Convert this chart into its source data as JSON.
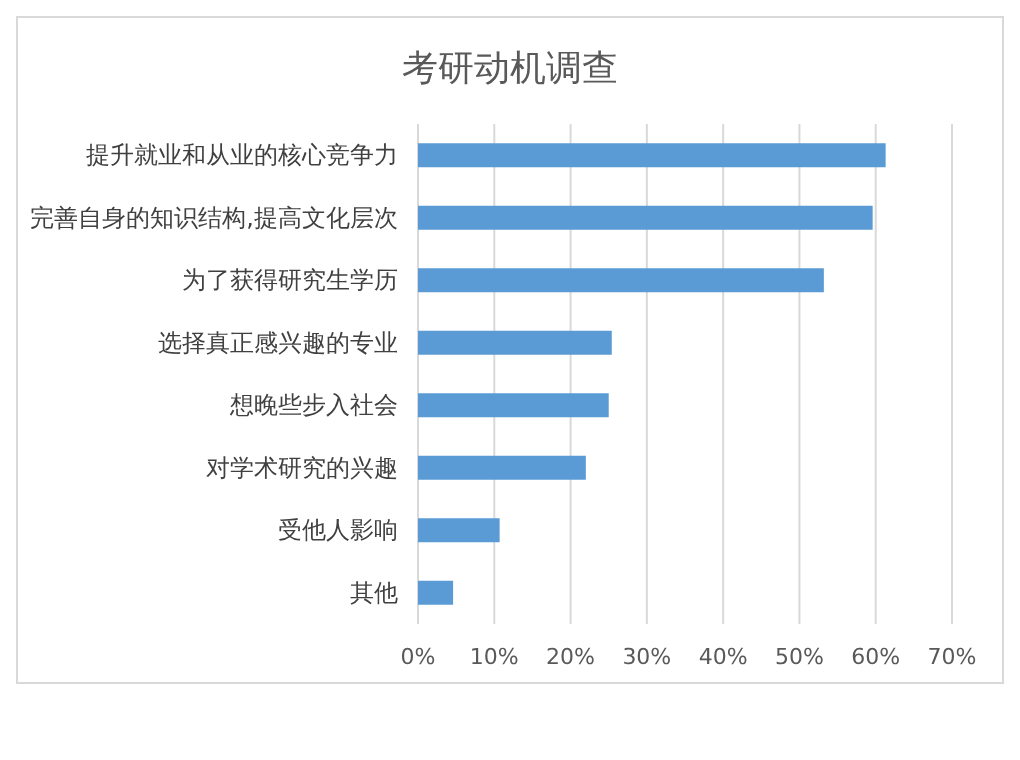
{
  "chart_data": {
    "type": "bar",
    "orientation": "horizontal",
    "title": "考研动机调查",
    "categories": [
      "提升就业和从业的核心竞争力",
      "完善自身的知识结构,提高文化层次",
      "为了获得研究生学历",
      "选择真正感兴趣的专业",
      "想晚些步入社会",
      "对学术研究的兴趣",
      "受他人影响",
      "其他"
    ],
    "values": [
      61.3,
      59.6,
      53.2,
      25.4,
      25.0,
      22.0,
      10.7,
      4.6
    ],
    "color": "#5b9bd5",
    "xlim": [
      0,
      70
    ],
    "xticks": [
      {
        "value": 0,
        "label": "0%"
      },
      {
        "value": 10,
        "label": "10%"
      },
      {
        "value": 20,
        "label": "20%"
      },
      {
        "value": 30,
        "label": "30%"
      },
      {
        "value": 40,
        "label": "40%"
      },
      {
        "value": 50,
        "label": "50%"
      },
      {
        "value": 60,
        "label": "60%"
      },
      {
        "value": 70,
        "label": "70%"
      }
    ],
    "grid": "x"
  }
}
